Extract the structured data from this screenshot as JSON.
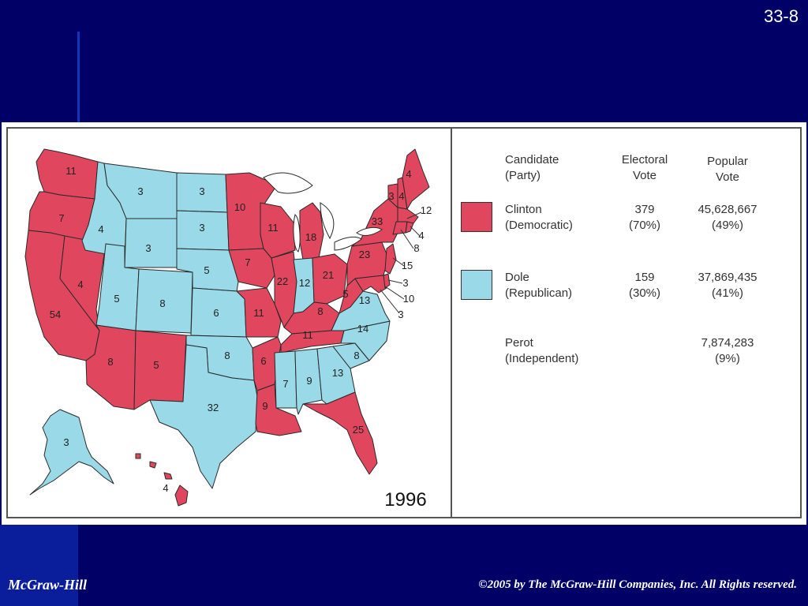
{
  "slide": {
    "number": "33-8"
  },
  "footer": {
    "left": "McGraw-Hill",
    "right": "©2005 by The McGraw-Hill Companies, Inc. All Rights reserved."
  },
  "map": {
    "year": "1996",
    "colors": {
      "democratic": "#e0475e",
      "republican": "#99d9e8",
      "border": "#2a2a2a"
    },
    "states": [
      {
        "abbr": "WA",
        "votes": "11",
        "party": "democratic"
      },
      {
        "abbr": "OR",
        "votes": "7",
        "party": "democratic"
      },
      {
        "abbr": "CA",
        "votes": "54",
        "party": "democratic"
      },
      {
        "abbr": "NV",
        "votes": "4",
        "party": "democratic"
      },
      {
        "abbr": "ID",
        "votes": "4",
        "party": "republican"
      },
      {
        "abbr": "MT",
        "votes": "3",
        "party": "democratic_no"
      },
      {
        "abbr": "WY",
        "votes": "3",
        "party": "republican"
      },
      {
        "abbr": "UT",
        "votes": "5",
        "party": "republican"
      },
      {
        "abbr": "AZ",
        "votes": "8",
        "party": "democratic"
      },
      {
        "abbr": "CO",
        "votes": "8",
        "party": "republican"
      },
      {
        "abbr": "NM",
        "votes": "5",
        "party": "democratic"
      },
      {
        "abbr": "ND",
        "votes": "3",
        "party": "republican"
      },
      {
        "abbr": "SD",
        "votes": "3",
        "party": "republican"
      },
      {
        "abbr": "NE",
        "votes": "5",
        "party": "republican"
      },
      {
        "abbr": "KS",
        "votes": "6",
        "party": "republican"
      },
      {
        "abbr": "OK",
        "votes": "8",
        "party": "republican"
      },
      {
        "abbr": "TX",
        "votes": "32",
        "party": "republican"
      },
      {
        "abbr": "MN",
        "votes": "10",
        "party": "democratic"
      },
      {
        "abbr": "IA",
        "votes": "7",
        "party": "democratic"
      },
      {
        "abbr": "MO",
        "votes": "11",
        "party": "democratic"
      },
      {
        "abbr": "AR",
        "votes": "6",
        "party": "democratic"
      },
      {
        "abbr": "LA",
        "votes": "9",
        "party": "democratic"
      },
      {
        "abbr": "WI",
        "votes": "11",
        "party": "democratic"
      },
      {
        "abbr": "IL",
        "votes": "22",
        "party": "democratic"
      },
      {
        "abbr": "MI",
        "votes": "18",
        "party": "democratic"
      },
      {
        "abbr": "IN",
        "votes": "12",
        "party": "republican"
      },
      {
        "abbr": "OH",
        "votes": "21",
        "party": "democratic"
      },
      {
        "abbr": "KY",
        "votes": "8",
        "party": "democratic"
      },
      {
        "abbr": "TN",
        "votes": "11",
        "party": "democratic"
      },
      {
        "abbr": "MS",
        "votes": "7",
        "party": "republican"
      },
      {
        "abbr": "AL",
        "votes": "9",
        "party": "republican"
      },
      {
        "abbr": "GA",
        "votes": "13",
        "party": "republican"
      },
      {
        "abbr": "FL",
        "votes": "25",
        "party": "democratic"
      },
      {
        "abbr": "SC",
        "votes": "8",
        "party": "republican"
      },
      {
        "abbr": "NC",
        "votes": "14",
        "party": "republican"
      },
      {
        "abbr": "VA",
        "votes": "13",
        "party": "republican"
      },
      {
        "abbr": "WV",
        "votes": "5",
        "party": "democratic"
      },
      {
        "abbr": "PA",
        "votes": "23",
        "party": "democratic"
      },
      {
        "abbr": "NY",
        "votes": "33",
        "party": "democratic"
      },
      {
        "abbr": "VT",
        "votes": "3",
        "party": "democratic"
      },
      {
        "abbr": "NH",
        "votes": "4",
        "party": "democratic"
      },
      {
        "abbr": "ME",
        "votes": "4",
        "party": "democratic"
      },
      {
        "abbr": "MA",
        "votes": "12",
        "party": "democratic"
      },
      {
        "abbr": "RI",
        "votes": "4",
        "party": "democratic"
      },
      {
        "abbr": "CT",
        "votes": "8",
        "party": "democratic"
      },
      {
        "abbr": "NJ",
        "votes": "15",
        "party": "democratic"
      },
      {
        "abbr": "DE",
        "votes": "3",
        "party": "democratic"
      },
      {
        "abbr": "MD",
        "votes": "10",
        "party": "democratic"
      },
      {
        "abbr": "DC",
        "votes": "3",
        "party": "democratic"
      },
      {
        "abbr": "AK",
        "votes": "3",
        "party": "republican"
      },
      {
        "abbr": "HI",
        "votes": "4",
        "party": "democratic"
      }
    ]
  },
  "legend": {
    "headers": {
      "candidate": [
        "Candidate",
        "(Party)"
      ],
      "electoral": [
        "Electoral",
        "Vote"
      ],
      "popular": [
        "Popular",
        "Vote"
      ]
    },
    "rows": [
      {
        "candidate": "Clinton",
        "party": "(Democratic)",
        "electoral": "379",
        "electoral_pct": "(70%)",
        "popular": "45,628,667",
        "popular_pct": "(49%)",
        "color": "#e0475e"
      },
      {
        "candidate": "Dole",
        "party": "(Republican)",
        "electoral": "159",
        "electoral_pct": "(30%)",
        "popular": "37,869,435",
        "popular_pct": "(41%)",
        "color": "#99d9e8"
      },
      {
        "candidate": "Perot",
        "party": "(Independent)",
        "electoral": "",
        "electoral_pct": "",
        "popular": "7,874,283",
        "popular_pct": "(9%)",
        "color": ""
      }
    ]
  }
}
